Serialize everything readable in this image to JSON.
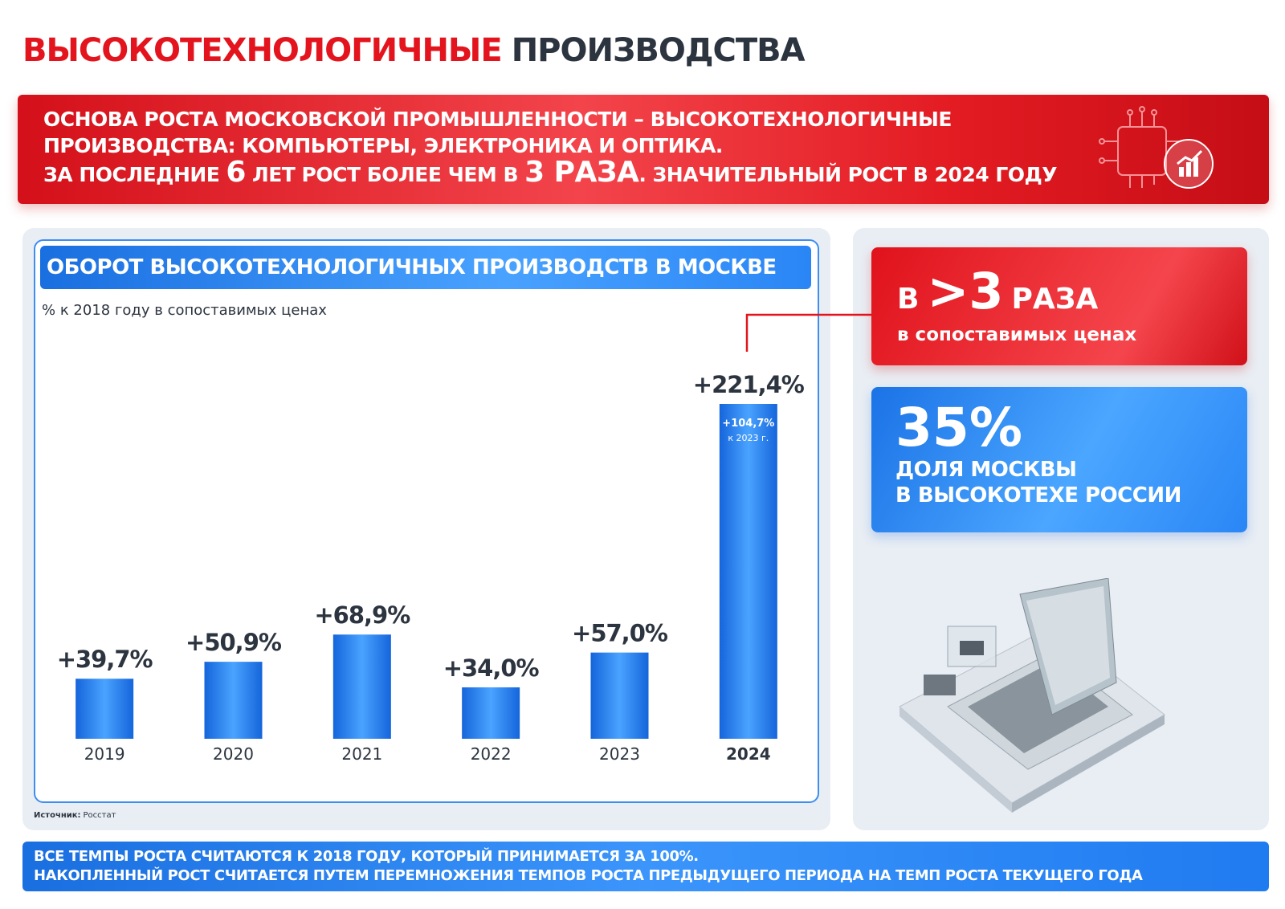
{
  "header": {
    "title_accent": "ВЫСОКОТЕХНОЛОГИЧНЫЕ",
    "title_rest": "ПРОИЗВОДСТВА"
  },
  "banner": {
    "line1": "ОСНОВА РОСТА МОСКОВСКОЙ ПРОМЫШЛЕННОСТИ – ВЫСОКОТЕХНОЛОГИЧНЫЕ",
    "line2": "ПРОИЗВОДСТВА: КОМПЬЮТЕРЫ, ЭЛЕКТРОНИКА И ОПТИКА.",
    "line3": [
      "ЗА ПОСЛЕДНИЕ",
      "6",
      "ЛЕТ РОСТ БОЛЕЕ ЧЕМ В",
      "3 РАЗА",
      ". ЗНАЧИТЕЛЬНЫЙ РОСТ В 2024 ГОДУ"
    ]
  },
  "chart_data": {
    "type": "bar",
    "title": "ОБОРОТ ВЫСОКОТЕХНОЛОГИЧНЫХ ПРОИЗВОДСТВ  В МОСКВЕ",
    "subtitle": "% к 2018 году в сопоставимых ценах",
    "categories": [
      "2019",
      "2020",
      "2021",
      "2022",
      "2023",
      "2024"
    ],
    "values": [
      39.7,
      50.9,
      68.9,
      34.0,
      57.0,
      221.4
    ],
    "value_labels": [
      "+39,7%",
      "+50,9%",
      "+68,9%",
      "+34,0%",
      "+57,0%",
      "+221,4%"
    ],
    "color": "#1e7ff0",
    "annotation": {
      "text": "+104,7%",
      "note": "к 2023 г."
    },
    "source": {
      "label": "Источник:",
      "text": "Росстат"
    }
  },
  "cards": {
    "growth": {
      "prefix": "В",
      "value": ">3",
      "suffix": "РАЗА",
      "note": "в сопоставимых ценах"
    },
    "share": {
      "value": "35%",
      "line1": "ДОЛЯ МОСКВЫ",
      "line2": "В ВЫСОКОТЕХЕ РОССИИ"
    }
  },
  "footer": {
    "line1": "ВСЕ ТЕМПЫ РОСТА СЧИТАЮТСЯ К 2018 ГОДУ, КОТОРЫЙ ПРИНИМАЕТСЯ ЗА 100%.",
    "line2": "НАКОПЛЕННЫЙ РОСТ СЧИТАЕТСЯ ПУТЕМ ПЕРЕМНОЖЕНИЯ ТЕМПОВ РОСТА ПРЕДЫДУЩЕГО ПЕРИОДА НА ТЕМП РОСТА ТЕКУЩЕГО ГОДА"
  }
}
